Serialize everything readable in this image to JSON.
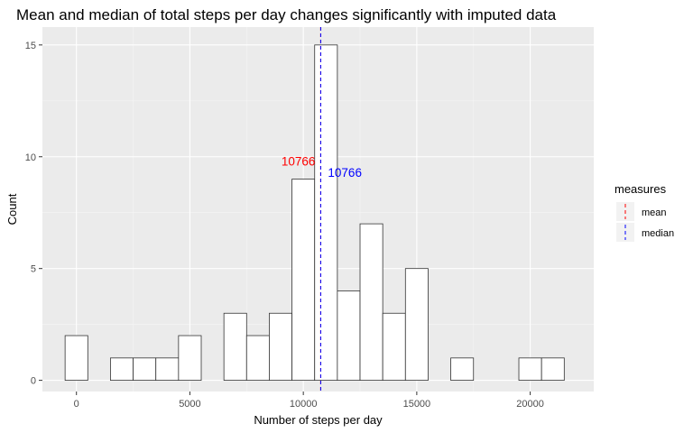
{
  "chart_data": {
    "type": "histogram",
    "title": "Mean and median of total steps per day changes significantly with imputed data",
    "xlabel": "Number of steps per day",
    "ylabel": "Count",
    "xlim": [
      -1500,
      22800
    ],
    "ylim": [
      -0.5,
      15.8
    ],
    "x_ticks": [
      0,
      5000,
      10000,
      15000,
      20000
    ],
    "x_tick_labels": [
      "0",
      "5000",
      "10000",
      "15000",
      "20000"
    ],
    "y_ticks": [
      0,
      5,
      10,
      15
    ],
    "y_tick_labels": [
      "0",
      "5",
      "10",
      "15"
    ],
    "bin_width": 1000,
    "bin_centers": [
      0,
      1000,
      2000,
      3000,
      4000,
      5000,
      6000,
      7000,
      8000,
      9000,
      10000,
      11000,
      12000,
      13000,
      14000,
      15000,
      16000,
      17000,
      18000,
      19000,
      20000,
      21000
    ],
    "counts": [
      2,
      0,
      1,
      1,
      1,
      2,
      0,
      3,
      2,
      3,
      9,
      15,
      4,
      7,
      3,
      5,
      0,
      1,
      0,
      0,
      1,
      1
    ],
    "bar_fill": "#ffffff",
    "bar_stroke": "#333333",
    "panel_background": "#ebebeb",
    "grid": true,
    "reference_lines": [
      {
        "name": "mean",
        "x": 10766,
        "color": "#ff0000",
        "label": "10766",
        "label_y": 9.8
      },
      {
        "name": "median",
        "x": 10766,
        "color": "#0000ff",
        "label": "10766",
        "label_y": 9.3
      }
    ],
    "legend": {
      "title": "measures",
      "placement": "right",
      "entries": [
        {
          "label": "mean",
          "color": "#ff0000"
        },
        {
          "label": "median",
          "color": "#0000ff"
        }
      ]
    }
  }
}
